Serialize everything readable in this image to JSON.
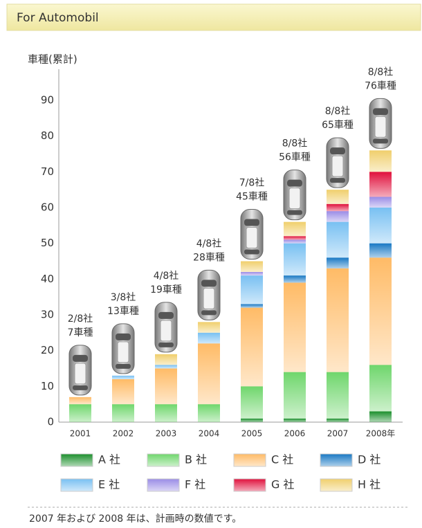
{
  "header": {
    "title": "For Automobil"
  },
  "chart_data": {
    "type": "stacked_bar",
    "y_label": "車種(累計)",
    "categories": [
      "2001",
      "2002",
      "2003",
      "2004",
      "2005",
      "2006",
      "2007",
      "2008年"
    ],
    "annotations": [
      [
        "2/8社",
        "7車種"
      ],
      [
        "3/8社",
        "13車種"
      ],
      [
        "4/8社",
        "19車種"
      ],
      [
        "4/8社",
        "28車種"
      ],
      [
        "7/8社",
        "45車種"
      ],
      [
        "8/8社",
        "56車種"
      ],
      [
        "8/8社",
        "65車種"
      ],
      [
        "8/8社",
        "76車種"
      ]
    ],
    "series": [
      {
        "name": "A 社",
        "color": "#1b8f2c",
        "values": [
          0,
          0,
          0,
          0,
          1,
          1,
          1,
          3
        ]
      },
      {
        "name": "B 社",
        "color": "#6fd66c",
        "values": [
          5,
          5,
          5,
          5,
          9,
          13,
          13,
          13
        ]
      },
      {
        "name": "C 社",
        "color": "#ffbb66",
        "values": [
          2,
          7,
          10,
          17,
          22,
          25,
          29,
          30
        ]
      },
      {
        "name": "D 社",
        "color": "#1878c4",
        "values": [
          0,
          0,
          0,
          0,
          1,
          2,
          3,
          4
        ]
      },
      {
        "name": "E 社",
        "color": "#78c0f2",
        "values": [
          0,
          1,
          1,
          3,
          8,
          9,
          10,
          10
        ]
      },
      {
        "name": "F 社",
        "color": "#9a8ce6",
        "values": [
          0,
          0,
          0,
          0,
          1,
          1,
          3,
          3
        ]
      },
      {
        "name": "G 社",
        "color": "#e0103c",
        "values": [
          0,
          0,
          0,
          0,
          0,
          1,
          2,
          7
        ]
      },
      {
        "name": "H 社",
        "color": "#f0cf6c",
        "values": [
          0,
          0,
          3,
          3,
          3,
          4,
          4,
          6
        ]
      }
    ],
    "ylim": [
      0,
      90
    ],
    "yticks": [
      0,
      10,
      20,
      30,
      40,
      50,
      60,
      70,
      80,
      90
    ]
  },
  "footnote": "2007 年および 2008 年は、計画時の数値です。"
}
